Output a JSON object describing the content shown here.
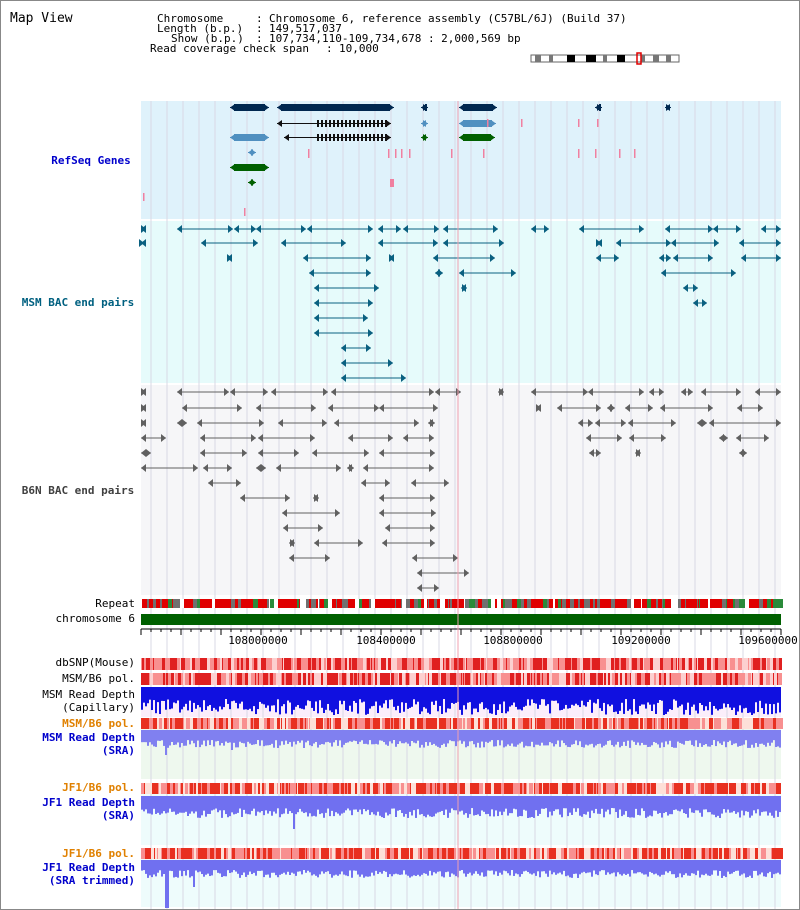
{
  "title": "Map View",
  "info": {
    "chromosome_key": "Chromosome",
    "chromosome_value": "Chromosome 6, reference assembly (C57BL/6J) (Build 37)",
    "length_key": "Length (b.p.)",
    "length_value": "149,517,037",
    "show_key": "Show (b.p.)",
    "show_value": "107,734,110-109,734,678 : 2,000,569 bp",
    "coverage_key": "Read coverage check span",
    "coverage_value": "10,000"
  },
  "tracks": {
    "refseq": "RefSeq Genes",
    "msm_bac": "MSM BAC end pairs",
    "b6n_bac": "B6N BAC end pairs",
    "repeat": "Repeat",
    "chromosome": "chromosome 6",
    "dbsnp": "dbSNP(Mouse)",
    "msm_b6_pol_1": "MSM/B6 pol.",
    "msm_depth_cap_1": "MSM Read Depth",
    "msm_depth_cap_2": "(Capillary)",
    "msm_b6_pol_2": "MSM/B6 pol.",
    "msm_depth_sra_1": "MSM Read Depth",
    "msm_depth_sra_2": "(SRA)",
    "jf1_b6_pol_1": "JF1/B6 pol.",
    "jf1_depth_sra_1": "JF1 Read Depth",
    "jf1_depth_sra_2": "(SRA)",
    "jf1_b6_pol_2": "JF1/B6 pol.",
    "jf1_depth_trim_1": "JF1 Read Depth",
    "jf1_depth_trim_2": "(SRA trimmed)"
  },
  "axis_ticks": [
    "108000000",
    "108400000",
    "108800000",
    "109200000",
    "109600000"
  ],
  "colors": {
    "refseq_label": "#0000cc",
    "msm_bac_label": "#006080",
    "b6n_bac_label": "#404040",
    "orange_label": "#e08000",
    "blue_label": "#0000cc",
    "refseq_bg": "#dff2fb",
    "msm_bg": "#e6fbfb",
    "b6n_bg": "#f6f6f8",
    "chromosome_bar": "#006000",
    "gene_dark": "#002850",
    "gene_light": "#5090c0",
    "gene_green": "#006000",
    "msm_line": "#0a6080",
    "b6n_line": "#606060"
  },
  "ideogram": {
    "highlight": "red-region-marker"
  }
}
